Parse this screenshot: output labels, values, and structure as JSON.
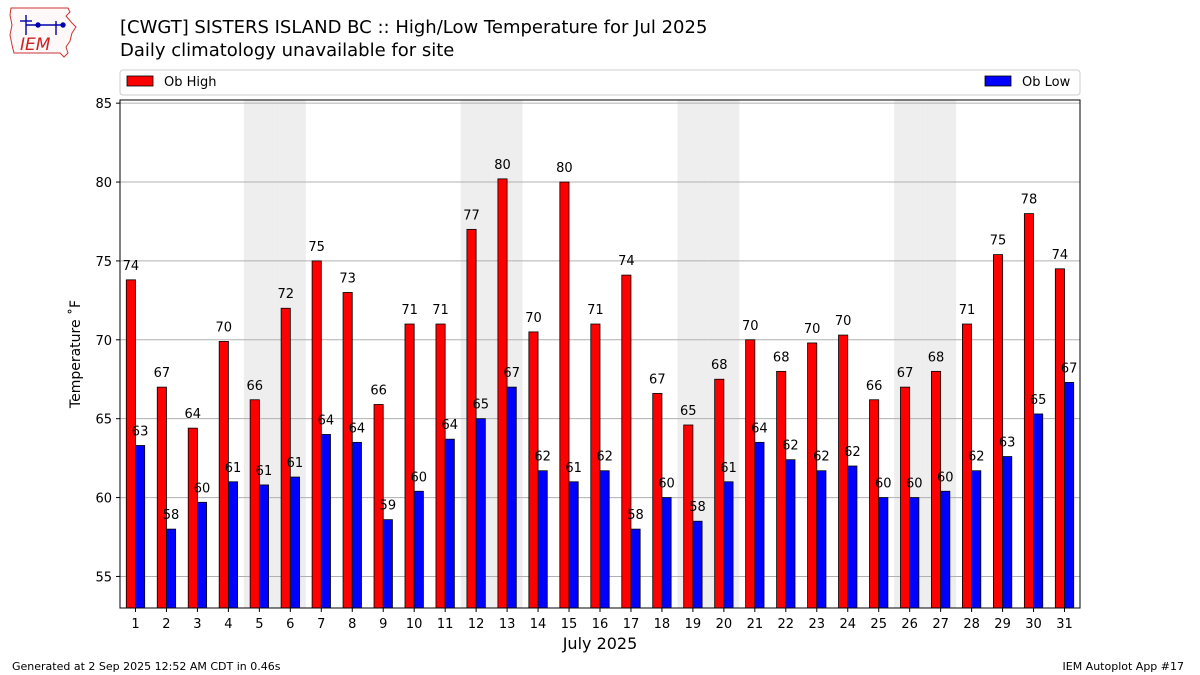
{
  "page": {
    "title_line1": "[CWGT] SISTERS ISLAND  BC :: High/Low Temperature for Jul 2025",
    "title_line2": "Daily climatology unavailable for site",
    "footer_left": "Generated at 2 Sep 2025 12:52 AM CDT in 0.46s",
    "footer_right": "IEM Autoplot App #17",
    "logo_text": "IEM"
  },
  "colors": {
    "high": "#ff0000",
    "low": "#0000ff",
    "weekend_band": "#eeeeee",
    "grid": "#b0b0b0"
  },
  "chart_data": {
    "type": "bar",
    "title": "[CWGT] SISTERS ISLAND  BC :: High/Low Temperature for Jul 2025",
    "subtitle": "Daily climatology unavailable for site",
    "xlabel": "July 2025",
    "ylabel": "Temperature ˚F",
    "ylim": [
      53,
      85.2
    ],
    "yticks": [
      55,
      60,
      65,
      70,
      75,
      80,
      85
    ],
    "grid": true,
    "legend_placement": "top",
    "categories": [
      "1",
      "2",
      "3",
      "4",
      "5",
      "6",
      "7",
      "8",
      "9",
      "10",
      "11",
      "12",
      "13",
      "14",
      "15",
      "16",
      "17",
      "18",
      "19",
      "20",
      "21",
      "22",
      "23",
      "24",
      "25",
      "26",
      "27",
      "28",
      "29",
      "30",
      "31"
    ],
    "weekend_days": [
      5,
      6,
      12,
      13,
      19,
      20,
      26,
      27
    ],
    "series": [
      {
        "name": "Ob High",
        "color": "#ff0000",
        "values": [
          73.8,
          67.0,
          64.4,
          69.9,
          66.2,
          72.0,
          75.0,
          73.0,
          65.9,
          71.0,
          71.0,
          77.0,
          80.2,
          70.5,
          80.0,
          71.0,
          74.1,
          66.6,
          64.6,
          67.5,
          70.0,
          68.0,
          69.8,
          70.3,
          66.2,
          67.0,
          68.0,
          71.0,
          75.4,
          78.0,
          74.5
        ],
        "labels": [
          "74",
          "67",
          "64",
          "70",
          "66",
          "72",
          "75",
          "73",
          "66",
          "71",
          "71",
          "77",
          "80",
          "70",
          "80",
          "71",
          "74",
          "67",
          "65",
          "68",
          "70",
          "68",
          "70",
          "70",
          "66",
          "67",
          "68",
          "71",
          "75",
          "78",
          "74"
        ]
      },
      {
        "name": "Ob Low",
        "color": "#0000ff",
        "values": [
          63.3,
          58.0,
          59.7,
          61.0,
          60.8,
          61.3,
          64.0,
          63.5,
          58.6,
          60.4,
          63.7,
          65.0,
          67.0,
          61.7,
          61.0,
          61.7,
          58.0,
          60.0,
          58.5,
          61.0,
          63.5,
          62.4,
          61.7,
          62.0,
          60.0,
          60.0,
          60.4,
          61.7,
          62.6,
          65.3,
          67.3
        ],
        "labels": [
          "63",
          "58",
          "60",
          "61",
          "61",
          "61",
          "64",
          "64",
          "59",
          "60",
          "64",
          "65",
          "67",
          "62",
          "61",
          "62",
          "58",
          "60",
          "58",
          "61",
          "64",
          "62",
          "62",
          "62",
          "60",
          "60",
          "60",
          "62",
          "63",
          "65",
          "67"
        ]
      }
    ]
  }
}
